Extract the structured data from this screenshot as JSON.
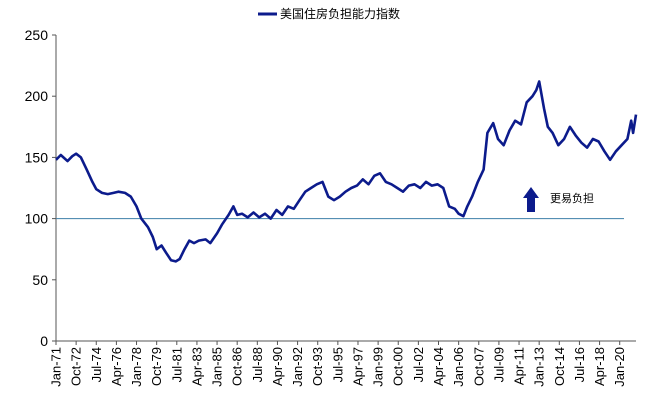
{
  "chart_data": {
    "type": "line",
    "legend": {
      "label": "美国住房负担能力指数",
      "position": "top-center"
    },
    "ylim": [
      0,
      250
    ],
    "yticks": [
      0,
      50,
      100,
      150,
      200,
      250
    ],
    "xlim": [
      "1971-01",
      "2021-06"
    ],
    "grid": false,
    "colors": {
      "series": "#0c1b8c",
      "reference": "#3d7fa8",
      "axis": "#555555"
    },
    "reference_line": {
      "y": 100
    },
    "annotation": {
      "text": "更易负担",
      "icon": "up-arrow-icon"
    },
    "x_tick_labels": [
      "Jan-71",
      "Oct-72",
      "Jul-74",
      "Apr-76",
      "Jan-78",
      "Oct-79",
      "Jul-81",
      "Apr-83",
      "Jan-85",
      "Oct-86",
      "Jul-88",
      "Apr-90",
      "Jan-92",
      "Oct-93",
      "Jul-95",
      "Apr-97",
      "Jan-99",
      "Oct-00",
      "Jul-02",
      "Apr-04",
      "Jan-06",
      "Oct-07",
      "Jul-09",
      "Apr-11",
      "Jan-13",
      "Oct-14",
      "Jul-16",
      "Apr-18",
      "Jan-20"
    ],
    "series": [
      {
        "name": "美国住房负担能力指数",
        "x": [
          "1971-01",
          "1971-06",
          "1972-01",
          "1972-06",
          "1972-10",
          "1973-03",
          "1973-09",
          "1974-03",
          "1974-07",
          "1975-01",
          "1975-07",
          "1976-01",
          "1976-06",
          "1977-01",
          "1977-07",
          "1978-01",
          "1978-06",
          "1979-01",
          "1979-06",
          "1979-10",
          "1980-03",
          "1980-08",
          "1981-01",
          "1981-06",
          "1981-10",
          "1982-03",
          "1982-08",
          "1983-01",
          "1983-06",
          "1984-01",
          "1984-06",
          "1985-01",
          "1985-06",
          "1986-01",
          "1986-06",
          "1986-10",
          "1987-03",
          "1987-09",
          "1988-03",
          "1988-09",
          "1989-03",
          "1989-09",
          "1990-03",
          "1990-09",
          "1991-03",
          "1991-09",
          "1992-03",
          "1992-09",
          "1993-03",
          "1993-09",
          "1994-03",
          "1994-09",
          "1995-03",
          "1995-09",
          "1996-03",
          "1996-09",
          "1997-03",
          "1997-09",
          "1998-03",
          "1998-09",
          "1999-03",
          "1999-09",
          "2000-03",
          "2000-09",
          "2001-03",
          "2001-09",
          "2002-03",
          "2002-09",
          "2003-03",
          "2003-09",
          "2004-03",
          "2004-09",
          "2005-03",
          "2005-09",
          "2006-01",
          "2006-06",
          "2006-10",
          "2007-03",
          "2007-09",
          "2008-03",
          "2008-07",
          "2009-01",
          "2009-06",
          "2009-12",
          "2010-06",
          "2010-12",
          "2011-06",
          "2011-12",
          "2012-06",
          "2012-10",
          "2013-01",
          "2013-06",
          "2013-10",
          "2014-03",
          "2014-09",
          "2015-03",
          "2015-09",
          "2016-03",
          "2016-09",
          "2017-03",
          "2017-09",
          "2018-03",
          "2018-09",
          "2019-03",
          "2019-09",
          "2020-03",
          "2020-09",
          "2021-01",
          "2021-03",
          "2021-06"
        ],
        "y": [
          148,
          152,
          147,
          151,
          153,
          150,
          140,
          130,
          124,
          121,
          120,
          121,
          122,
          121,
          118,
          110,
          100,
          93,
          85,
          75,
          78,
          72,
          66,
          65,
          67,
          75,
          82,
          80,
          82,
          83,
          80,
          88,
          95,
          103,
          110,
          103,
          104,
          101,
          105,
          101,
          104,
          100,
          107,
          103,
          110,
          108,
          115,
          122,
          125,
          128,
          130,
          118,
          115,
          118,
          122,
          125,
          127,
          132,
          128,
          135,
          137,
          130,
          128,
          125,
          122,
          127,
          128,
          125,
          130,
          127,
          128,
          125,
          110,
          108,
          104,
          102,
          110,
          118,
          130,
          140,
          170,
          178,
          165,
          160,
          172,
          180,
          177,
          195,
          200,
          205,
          212,
          190,
          175,
          170,
          160,
          165,
          175,
          168,
          162,
          158,
          165,
          163,
          155,
          148,
          155,
          160,
          165,
          180,
          170,
          185
        ]
      }
    ]
  }
}
